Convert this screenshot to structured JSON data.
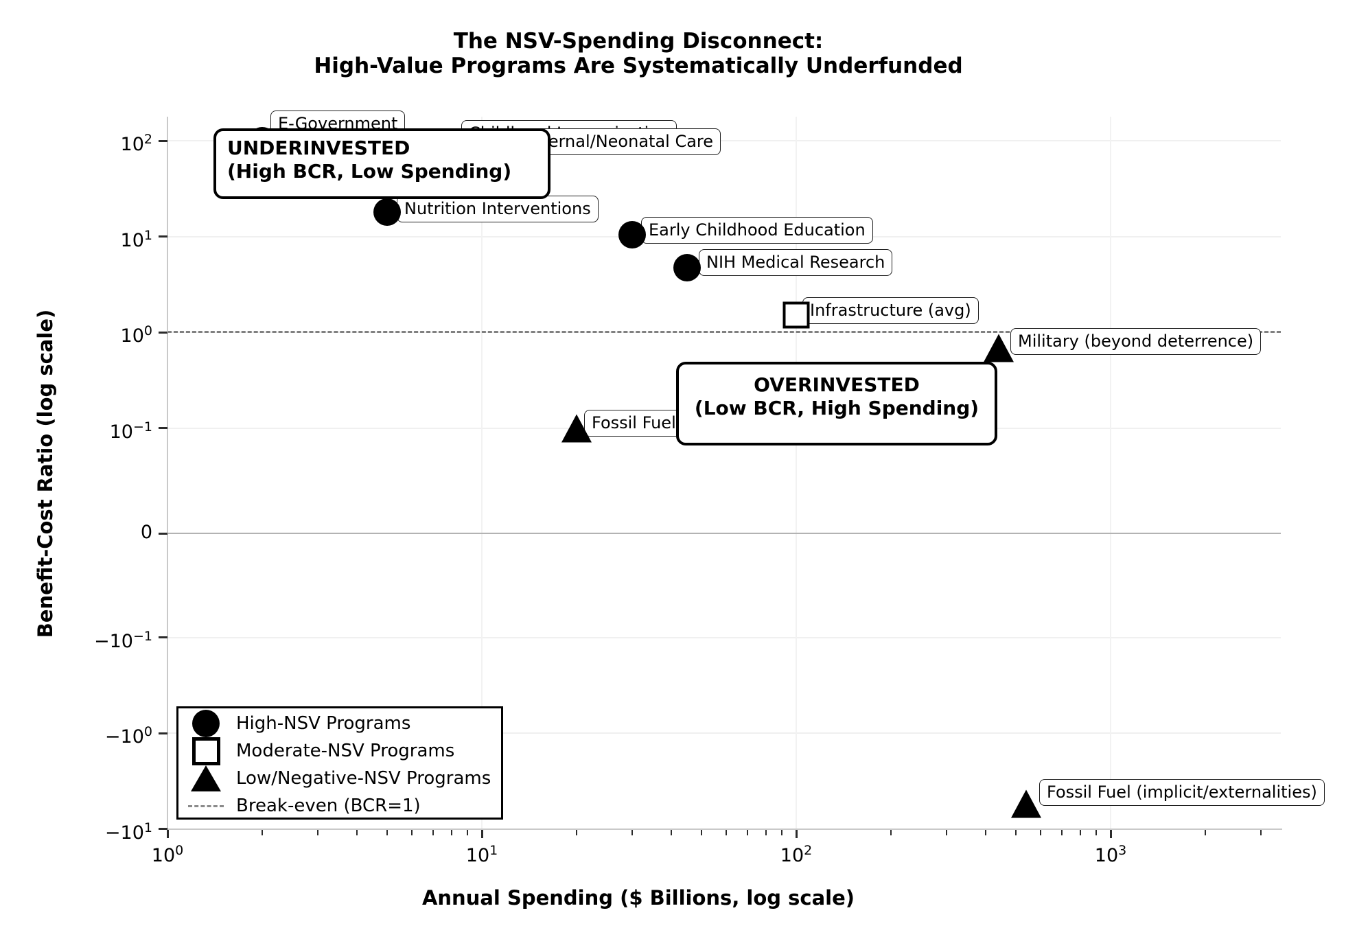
{
  "title": {
    "line1": "The NSV-Spending Disconnect:",
    "line2": "High-Value Programs Are Systematically Underfunded"
  },
  "axis_labels": {
    "x": "Annual Spending ($ Billions, log scale)",
    "y": "Benefit-Cost Ratio (log scale)"
  },
  "chart_data": {
    "type": "scatter",
    "x_axis": {
      "label": "Annual Spending ($ Billions, log scale)",
      "scale": "log",
      "range": [
        1,
        3500
      ],
      "ticks": [
        {
          "value": 1,
          "base": "10",
          "sup": "0"
        },
        {
          "value": 10,
          "base": "10",
          "sup": "1"
        },
        {
          "value": 100,
          "base": "10",
          "sup": "2"
        },
        {
          "value": 1000,
          "base": "10",
          "sup": "3"
        }
      ]
    },
    "y_axis": {
      "label": "Benefit-Cost Ratio (log scale)",
      "scale": "symlog",
      "linthresh": 0.1,
      "range": [
        -10,
        150
      ],
      "ticks": [
        {
          "value": 100,
          "base": "10",
          "sup": "2"
        },
        {
          "value": 10,
          "base": "10",
          "sup": "1"
        },
        {
          "value": 1,
          "base": "10",
          "sup": "0"
        },
        {
          "value": 0.1,
          "base": "10",
          "sup": "−1"
        },
        {
          "value": 0,
          "base": "0",
          "sup": ""
        },
        {
          "value": -0.1,
          "base": "−10",
          "sup": "−1"
        },
        {
          "value": -1,
          "base": "−10",
          "sup": "0"
        },
        {
          "value": -10,
          "base": "−10",
          "sup": "1"
        }
      ]
    },
    "break_even_line": {
      "bcr": 1,
      "style": "dashed",
      "color": "#808080"
    },
    "series": [
      {
        "name": "High-NSV Programs",
        "marker": "circle",
        "points": [
          {
            "label": "E-Government",
            "spending_billions": 2,
            "bcr": 100,
            "marker_partially_hidden": true
          },
          {
            "label": "Childhood Immunization",
            "spending_billions": 6,
            "bcr": 90,
            "marker_hidden": true,
            "label_mostly_hidden": true
          },
          {
            "label": "Maternal/Neonatal Care",
            "spending_billions": 8,
            "bcr": 95,
            "marker_hidden": true
          },
          {
            "label": "Nutrition Interventions",
            "spending_billions": 5,
            "bcr": 18
          },
          {
            "label": "Early Childhood Education",
            "spending_billions": 30,
            "bcr": 10.5
          },
          {
            "label": "NIH Medical Research",
            "spending_billions": 45,
            "bcr": 4.7
          }
        ]
      },
      {
        "name": "Moderate-NSV Programs",
        "marker": "square",
        "points": [
          {
            "label": "Infrastructure (avg)",
            "spending_billions": 100,
            "bcr": 1.5
          }
        ]
      },
      {
        "name": "Low/Negative-NSV Programs",
        "marker": "triangle",
        "points": [
          {
            "label": "Fossil Fuel Subsidies (explicit)",
            "spending_billions": 20,
            "bcr": 0.1
          },
          {
            "label": "Military (beyond deterrence)",
            "spending_billions": 440,
            "bcr": 0.68
          },
          {
            "label": "Fossil Fuel (implicit/externalities)",
            "spending_billions": 540,
            "bcr": -5.5
          }
        ]
      }
    ],
    "annotations": [
      {
        "id": "underinvested",
        "line1": "UNDERINVESTED",
        "line2": "(High BCR, Low Spending)"
      },
      {
        "id": "overinvested",
        "line1": "OVERINVESTED",
        "line2": "(Low BCR, High Spending)"
      }
    ]
  },
  "legend": {
    "items": [
      {
        "marker": "circle",
        "label": "High-NSV Programs"
      },
      {
        "marker": "square",
        "label": "Moderate-NSV Programs"
      },
      {
        "marker": "triangle",
        "label": "Low/Negative-NSV Programs"
      },
      {
        "marker": "dash",
        "label": "Break-even (BCR=1)"
      }
    ]
  },
  "colors": {
    "marker": "#000000",
    "grid": "#f0f0f0",
    "zero_line": "#b3b3b3",
    "break_even": "#808080",
    "spine": "#c9c9c9",
    "background": "#ffffff"
  }
}
